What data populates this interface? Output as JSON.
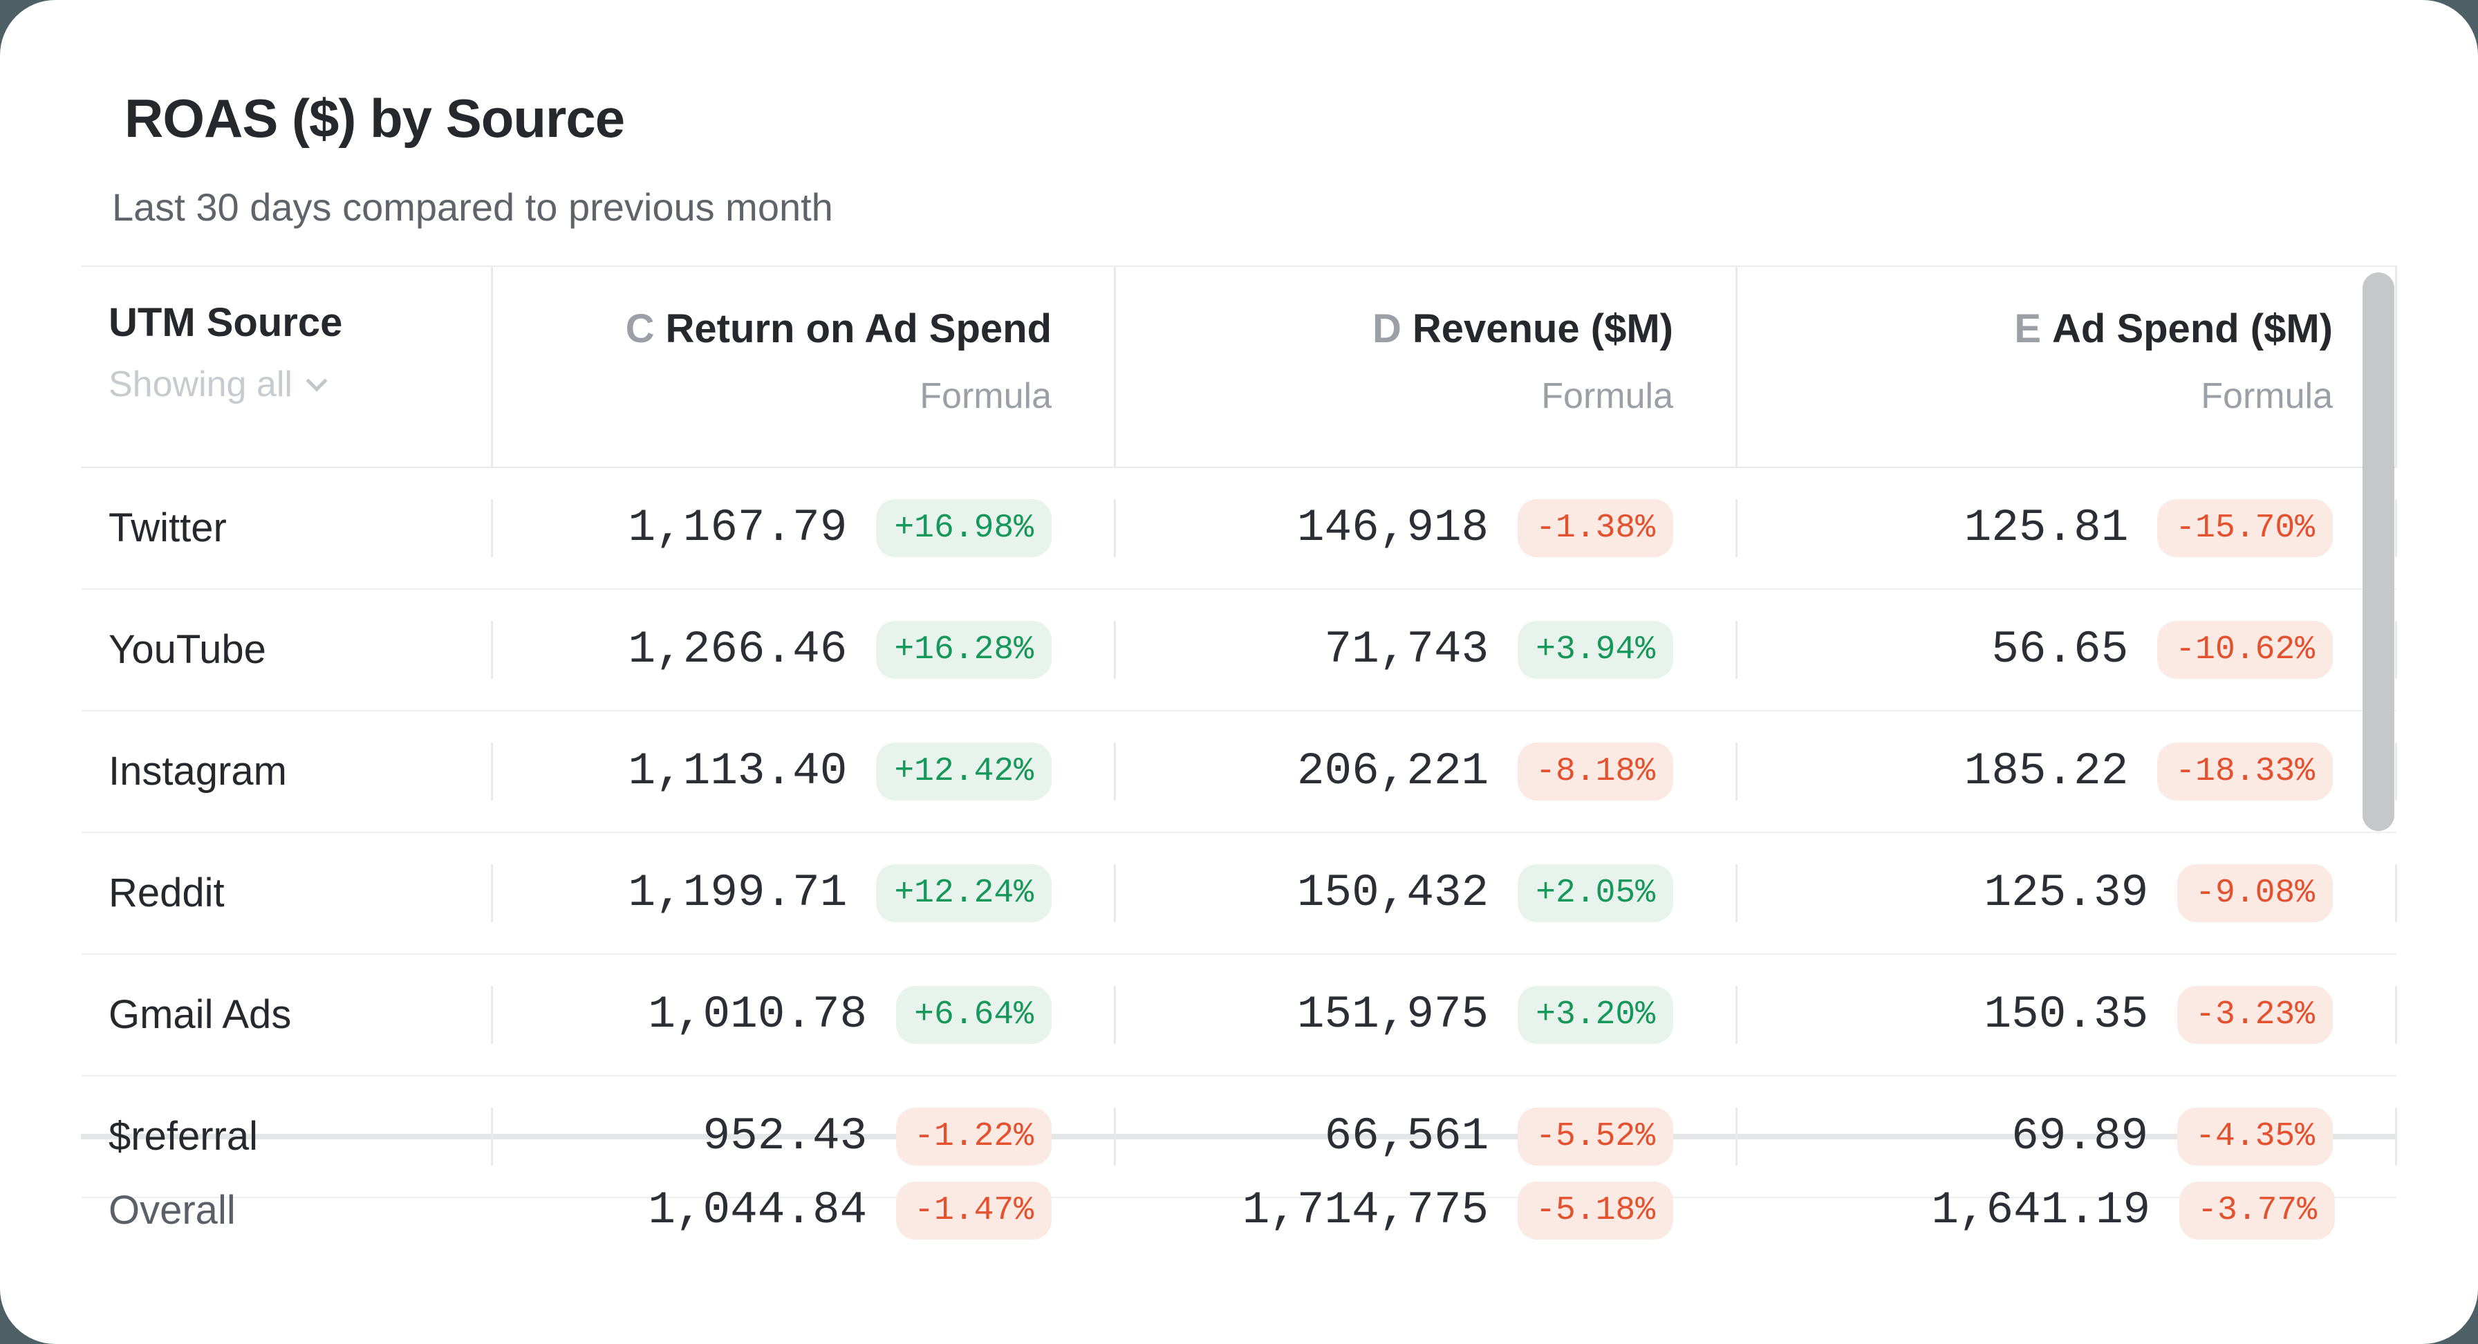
{
  "card": {
    "title": "ROAS ($) by Source",
    "subtitle": "Last 30 days compared to previous month"
  },
  "table": {
    "source_header": "UTM Source",
    "source_filter": "Showing all",
    "columns": [
      {
        "letter": "C",
        "label": "Return on Ad Spend",
        "sublabel": "Formula"
      },
      {
        "letter": "D",
        "label": "Revenue ($M)",
        "sublabel": "Formula"
      },
      {
        "letter": "E",
        "label": "Ad Spend ($M)",
        "sublabel": "Formula"
      }
    ],
    "rows": [
      {
        "source": "Twitter",
        "cells": [
          {
            "value": "1,167.79",
            "delta": "+16.98%",
            "trend": "up"
          },
          {
            "value": "146,918",
            "delta": "-1.38%",
            "trend": "down"
          },
          {
            "value": "125.81",
            "delta": "-15.70%",
            "trend": "down"
          }
        ]
      },
      {
        "source": "YouTube",
        "cells": [
          {
            "value": "1,266.46",
            "delta": "+16.28%",
            "trend": "up"
          },
          {
            "value": "71,743",
            "delta": "+3.94%",
            "trend": "up"
          },
          {
            "value": "56.65",
            "delta": "-10.62%",
            "trend": "down"
          }
        ]
      },
      {
        "source": "Instagram",
        "cells": [
          {
            "value": "1,113.40",
            "delta": "+12.42%",
            "trend": "up"
          },
          {
            "value": "206,221",
            "delta": "-8.18%",
            "trend": "down"
          },
          {
            "value": "185.22",
            "delta": "-18.33%",
            "trend": "down"
          }
        ]
      },
      {
        "source": "Reddit",
        "cells": [
          {
            "value": "1,199.71",
            "delta": "+12.24%",
            "trend": "up"
          },
          {
            "value": "150,432",
            "delta": "+2.05%",
            "trend": "up"
          },
          {
            "value": "125.39",
            "delta": "-9.08%",
            "trend": "down"
          }
        ]
      },
      {
        "source": "Gmail Ads",
        "cells": [
          {
            "value": "1,010.78",
            "delta": "+6.64%",
            "trend": "up"
          },
          {
            "value": "151,975",
            "delta": "+3.20%",
            "trend": "up"
          },
          {
            "value": "150.35",
            "delta": "-3.23%",
            "trend": "down"
          }
        ]
      },
      {
        "source": "$referral",
        "cells": [
          {
            "value": "952.43",
            "delta": "-1.22%",
            "trend": "down"
          },
          {
            "value": "66,561",
            "delta": "-5.52%",
            "trend": "down"
          },
          {
            "value": "69.89",
            "delta": "-4.35%",
            "trend": "down"
          }
        ]
      }
    ],
    "summary": {
      "source": "Overall",
      "cells": [
        {
          "value": "1,044.84",
          "delta": "-1.47%",
          "trend": "down"
        },
        {
          "value": "1,714,775",
          "delta": "-5.18%",
          "trend": "down"
        },
        {
          "value": "1,641.19",
          "delta": "-3.77%",
          "trend": "down"
        }
      ]
    }
  },
  "colors": {
    "background": "#4d6065",
    "card": "#ffffff",
    "positive_text": "#17985b",
    "positive_bg": "#e9f3ee",
    "negative_text": "#e4512f",
    "negative_bg": "#fbe9e3"
  }
}
